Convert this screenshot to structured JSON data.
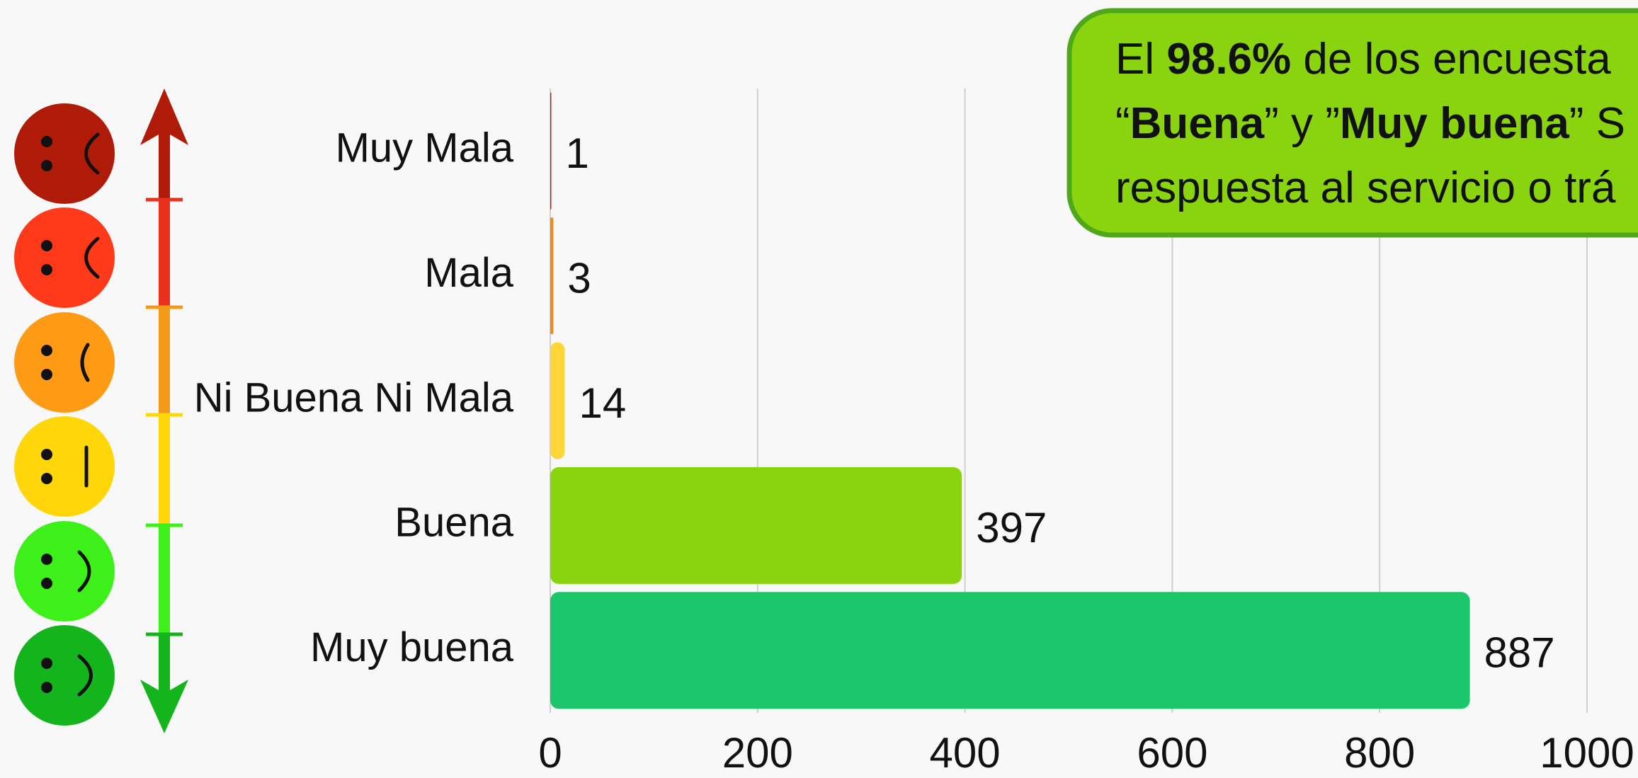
{
  "chart_data": {
    "type": "bar",
    "orientation": "horizontal",
    "categories": [
      "Muy Mala",
      "Mala",
      "Ni Buena Ni Mala",
      "Buena",
      "Muy buena"
    ],
    "values": [
      1,
      3,
      14,
      397,
      887
    ],
    "colors": [
      "#c8201a",
      "#f08a1e",
      "#ffd63a",
      "#8ad30f",
      "#1cc66a"
    ],
    "xlim": [
      0,
      1000
    ],
    "xticks": [
      0,
      200,
      400,
      600,
      800,
      1000
    ],
    "grid": true,
    "annotation": {
      "lines": [
        [
          {
            "text": "El "
          },
          {
            "text": "98.6%",
            "bold": true
          },
          {
            "text": " de los encuesta"
          }
        ],
        [
          {
            "text": "“"
          },
          {
            "text": "Buena",
            "bold": true
          },
          {
            "text": "” y ”"
          },
          {
            "text": "Muy buena",
            "bold": true
          },
          {
            "text": "” S"
          }
        ],
        [
          {
            "text": "respuesta al servicio o trá"
          }
        ]
      ]
    }
  }
}
